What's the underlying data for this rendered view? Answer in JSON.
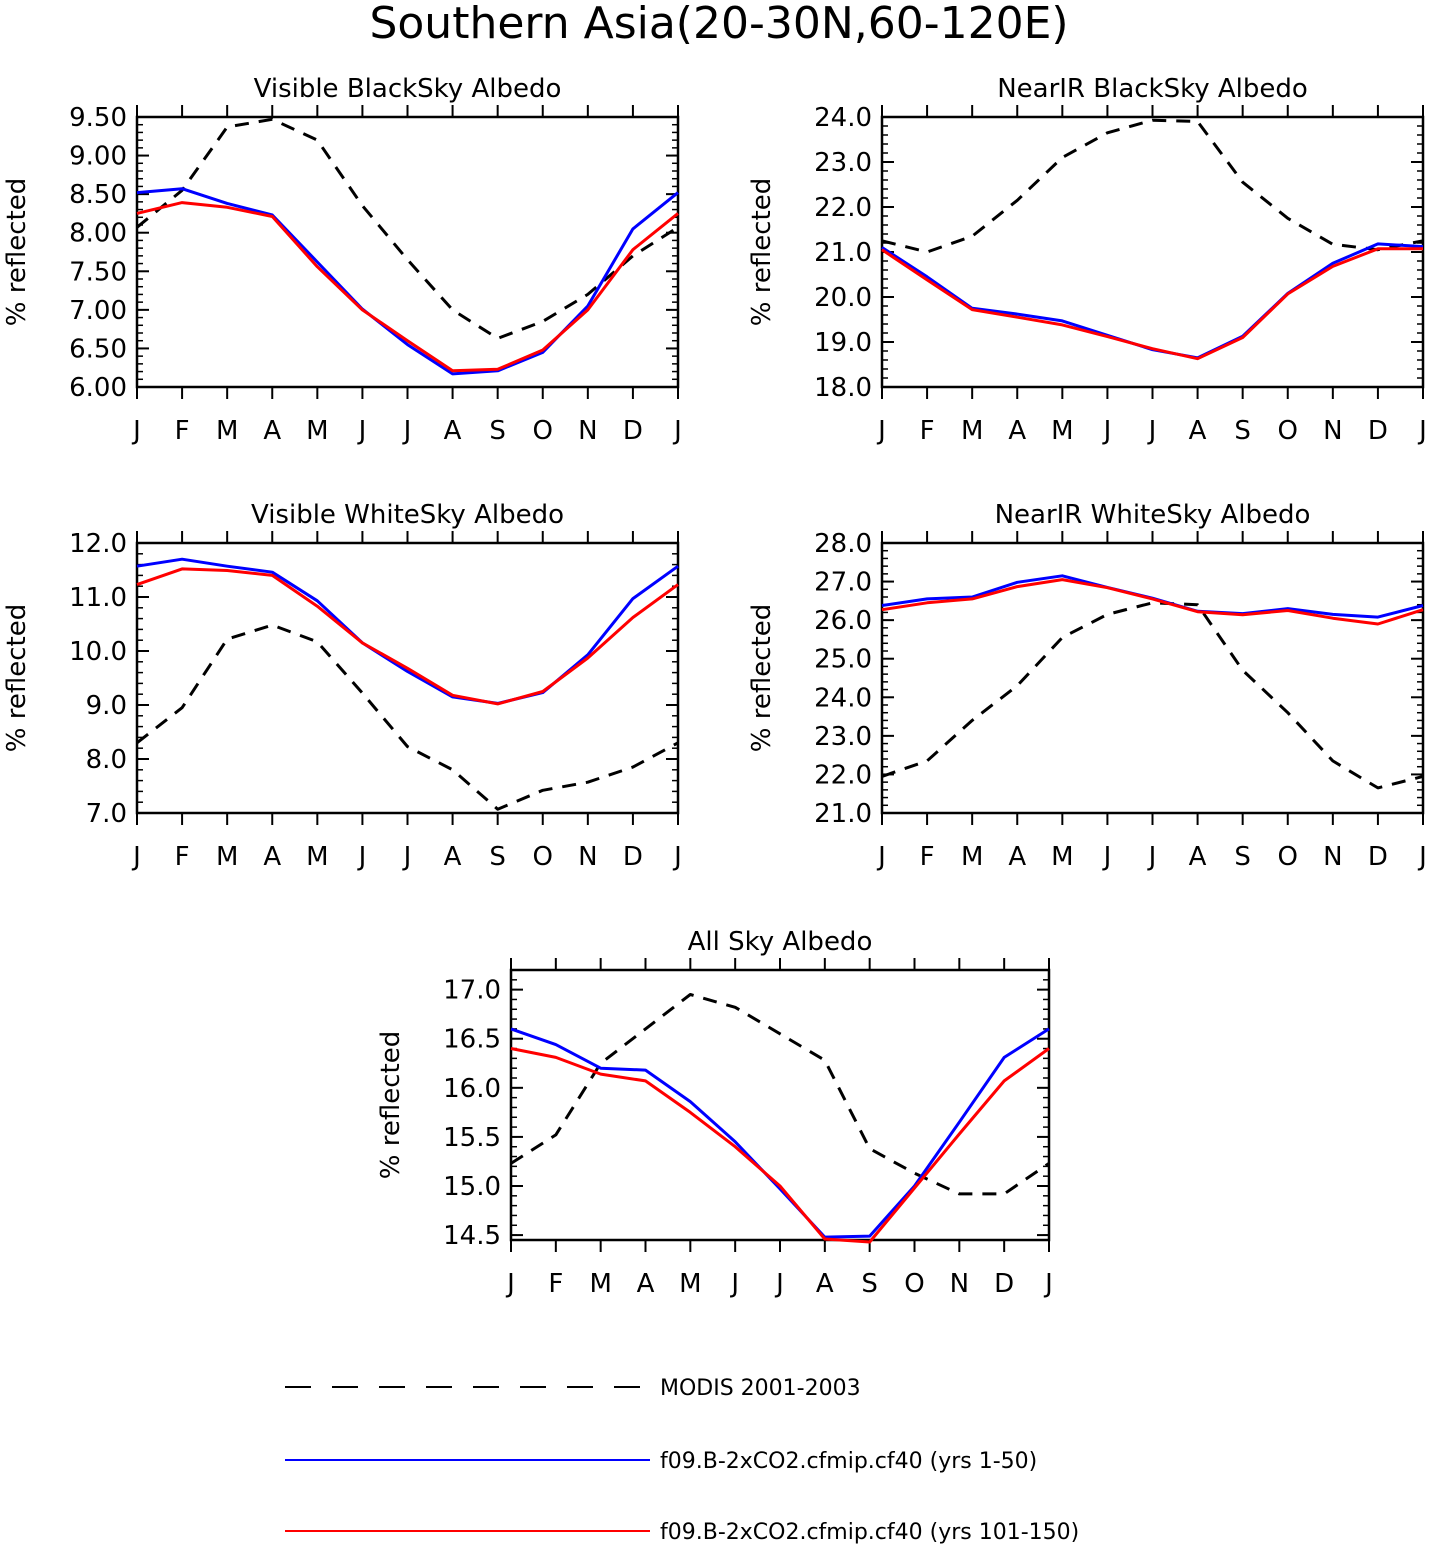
{
  "page_title": "Southern Asia(20-30N,60-120E)",
  "legend": [
    {
      "label": "MODIS 2001-2003",
      "color": "#000000",
      "dash": true
    },
    {
      "label": "f09.B-2xCO2.cfmip.cf40 (yrs 1-50)",
      "color": "#0000ff",
      "dash": false
    },
    {
      "label": "f09.B-2xCO2.cfmip.cf40 (yrs 101-150)",
      "color": "#ff0000",
      "dash": false
    }
  ],
  "chart_data": [
    {
      "type": "line",
      "title": "Visible BlackSky Albedo",
      "ylabel": "% reflected",
      "categories": [
        "J",
        "F",
        "M",
        "A",
        "M",
        "J",
        "J",
        "A",
        "S",
        "O",
        "N",
        "D",
        "J"
      ],
      "ylim": [
        6.0,
        9.5
      ],
      "yticks": [
        "6.00",
        "6.50",
        "7.00",
        "7.50",
        "8.00",
        "8.50",
        "9.00",
        "9.50"
      ],
      "series": [
        {
          "name": "MODIS 2001-2003",
          "color": "#000000",
          "dash": true,
          "values": [
            8.07,
            8.55,
            9.37,
            9.47,
            9.2,
            8.35,
            7.65,
            7.0,
            6.63,
            6.85,
            7.2,
            7.7,
            8.07
          ]
        },
        {
          "name": "f09.B-2xCO2.cfmip.cf40 (yrs 1-50)",
          "color": "#0000ff",
          "dash": false,
          "values": [
            8.52,
            8.57,
            8.38,
            8.23,
            7.62,
            7.01,
            6.55,
            6.17,
            6.21,
            6.45,
            7.05,
            8.05,
            8.52
          ]
        },
        {
          "name": "f09.B-2xCO2.cfmip.cf40 (yrs 101-150)",
          "color": "#ff0000",
          "dash": false,
          "values": [
            8.25,
            8.39,
            8.33,
            8.21,
            7.56,
            7.0,
            6.6,
            6.21,
            6.23,
            6.48,
            7.0,
            7.78,
            8.25
          ]
        }
      ]
    },
    {
      "type": "line",
      "title": "NearIR BlackSky Albedo",
      "ylabel": "% reflected",
      "categories": [
        "J",
        "F",
        "M",
        "A",
        "M",
        "J",
        "J",
        "A",
        "S",
        "O",
        "N",
        "D",
        "J"
      ],
      "ylim": [
        18.0,
        24.0
      ],
      "yticks": [
        "18.0",
        "19.0",
        "20.0",
        "21.0",
        "22.0",
        "23.0",
        "24.0"
      ],
      "series": [
        {
          "name": "MODIS 2001-2003",
          "color": "#000000",
          "dash": true,
          "values": [
            21.25,
            21.0,
            21.35,
            22.15,
            23.1,
            23.65,
            23.93,
            23.9,
            22.55,
            21.75,
            21.17,
            21.05,
            21.25
          ]
        },
        {
          "name": "f09.B-2xCO2.cfmip.cf40 (yrs 1-50)",
          "color": "#0000ff",
          "dash": false,
          "values": [
            21.1,
            20.45,
            19.75,
            19.62,
            19.47,
            19.15,
            18.83,
            18.65,
            19.13,
            20.08,
            20.75,
            21.18,
            21.12
          ]
        },
        {
          "name": "f09.B-2xCO2.cfmip.cf40 (yrs 101-150)",
          "color": "#ff0000",
          "dash": false,
          "values": [
            21.05,
            20.38,
            19.72,
            19.55,
            19.38,
            19.12,
            18.85,
            18.63,
            19.1,
            20.07,
            20.68,
            21.07,
            21.07
          ]
        }
      ]
    },
    {
      "type": "line",
      "title": "Visible WhiteSky Albedo",
      "ylabel": "% reflected",
      "categories": [
        "J",
        "F",
        "M",
        "A",
        "M",
        "J",
        "J",
        "A",
        "S",
        "O",
        "N",
        "D",
        "J"
      ],
      "ylim": [
        7.0,
        12.0
      ],
      "yticks": [
        "7.0",
        "8.0",
        "9.0",
        "10.0",
        "11.0",
        "12.0"
      ],
      "series": [
        {
          "name": "MODIS 2001-2003",
          "color": "#000000",
          "dash": true,
          "values": [
            8.3,
            8.95,
            10.22,
            10.48,
            10.17,
            9.22,
            8.23,
            7.8,
            7.07,
            7.42,
            7.57,
            7.85,
            8.3
          ]
        },
        {
          "name": "f09.B-2xCO2.cfmip.cf40 (yrs 1-50)",
          "color": "#0000ff",
          "dash": false,
          "values": [
            11.57,
            11.7,
            11.57,
            11.46,
            10.93,
            10.15,
            9.62,
            9.15,
            9.03,
            9.23,
            9.93,
            10.97,
            11.57
          ]
        },
        {
          "name": "f09.B-2xCO2.cfmip.cf40 (yrs 101-150)",
          "color": "#ff0000",
          "dash": false,
          "values": [
            11.23,
            11.52,
            11.49,
            11.4,
            10.83,
            10.15,
            9.68,
            9.18,
            9.02,
            9.25,
            9.87,
            10.62,
            11.23
          ]
        }
      ]
    },
    {
      "type": "line",
      "title": "NearIR WhiteSky Albedo",
      "ylabel": "% reflected",
      "categories": [
        "J",
        "F",
        "M",
        "A",
        "M",
        "J",
        "J",
        "A",
        "S",
        "O",
        "N",
        "D",
        "J"
      ],
      "ylim": [
        21.0,
        28.0
      ],
      "yticks": [
        "21.0",
        "22.0",
        "23.0",
        "24.0",
        "25.0",
        "26.0",
        "27.0",
        "28.0"
      ],
      "series": [
        {
          "name": "MODIS 2001-2003",
          "color": "#000000",
          "dash": true,
          "values": [
            21.95,
            22.35,
            23.4,
            24.3,
            25.55,
            26.15,
            26.45,
            26.4,
            24.7,
            23.6,
            22.35,
            21.65,
            21.95
          ]
        },
        {
          "name": "f09.B-2xCO2.cfmip.cf40 (yrs 1-50)",
          "color": "#0000ff",
          "dash": false,
          "values": [
            26.38,
            26.55,
            26.6,
            26.98,
            27.15,
            26.85,
            26.57,
            26.23,
            26.17,
            26.3,
            26.15,
            26.08,
            26.38
          ]
        },
        {
          "name": "f09.B-2xCO2.cfmip.cf40 (yrs 101-150)",
          "color": "#ff0000",
          "dash": false,
          "values": [
            26.27,
            26.45,
            26.55,
            26.87,
            27.05,
            26.84,
            26.55,
            26.22,
            26.14,
            26.25,
            26.05,
            25.9,
            26.27
          ]
        }
      ]
    },
    {
      "type": "line",
      "title": "All Sky Albedo",
      "ylabel": "% reflected",
      "categories": [
        "J",
        "F",
        "M",
        "A",
        "M",
        "J",
        "J",
        "A",
        "S",
        "O",
        "N",
        "D",
        "J"
      ],
      "ylim": [
        14.45,
        17.2
      ],
      "yticks": [
        "14.5",
        "15.0",
        "15.5",
        "16.0",
        "16.5",
        "17.0"
      ],
      "series": [
        {
          "name": "MODIS 2001-2003",
          "color": "#000000",
          "dash": true,
          "values": [
            15.23,
            15.52,
            16.25,
            16.6,
            16.95,
            16.82,
            16.55,
            16.28,
            15.38,
            15.13,
            14.92,
            14.92,
            15.23
          ]
        },
        {
          "name": "f09.B-2xCO2.cfmip.cf40 (yrs 1-50)",
          "color": "#0000ff",
          "dash": false,
          "values": [
            16.6,
            16.44,
            16.2,
            16.18,
            15.86,
            15.45,
            14.97,
            14.48,
            14.49,
            15.0,
            15.65,
            16.31,
            16.6
          ]
        },
        {
          "name": "f09.B-2xCO2.cfmip.cf40 (yrs 101-150)",
          "color": "#ff0000",
          "dash": false,
          "values": [
            16.4,
            16.31,
            16.14,
            16.07,
            15.75,
            15.4,
            15.0,
            14.46,
            14.43,
            14.98,
            15.53,
            16.07,
            16.4
          ]
        }
      ]
    }
  ]
}
